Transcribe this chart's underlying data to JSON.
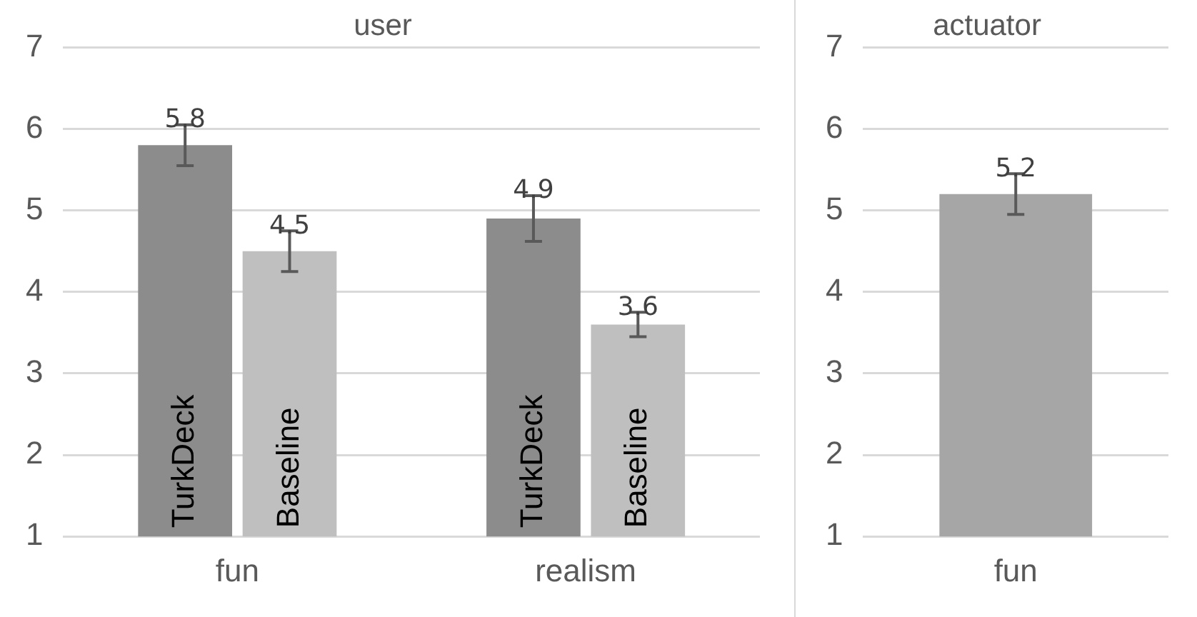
{
  "chart_data": [
    {
      "type": "bar",
      "title": "user",
      "categories": [
        "fun",
        "realism"
      ],
      "series": [
        {
          "name": "TurkDeck",
          "color": "#8c8c8c",
          "values": [
            5.8,
            4.9
          ],
          "errors": [
            0.25,
            0.28
          ]
        },
        {
          "name": "Baseline",
          "color": "#bfbfbf",
          "values": [
            4.5,
            3.6
          ],
          "errors": [
            0.25,
            0.15
          ]
        }
      ],
      "ylim": [
        1,
        7
      ],
      "yticks": [
        1,
        2,
        3,
        4,
        5,
        6,
        7
      ],
      "grid": "y",
      "legend": false,
      "data_labels": true
    },
    {
      "type": "bar",
      "title": "actuator",
      "categories": [
        "fun"
      ],
      "values": [
        5.2
      ],
      "color": "#a6a6a6",
      "errors": [
        0.25
      ],
      "ylim": [
        1,
        7
      ],
      "yticks": [
        1,
        2,
        3,
        4,
        5,
        6,
        7
      ],
      "grid": "y",
      "legend": false,
      "data_labels": true
    }
  ]
}
